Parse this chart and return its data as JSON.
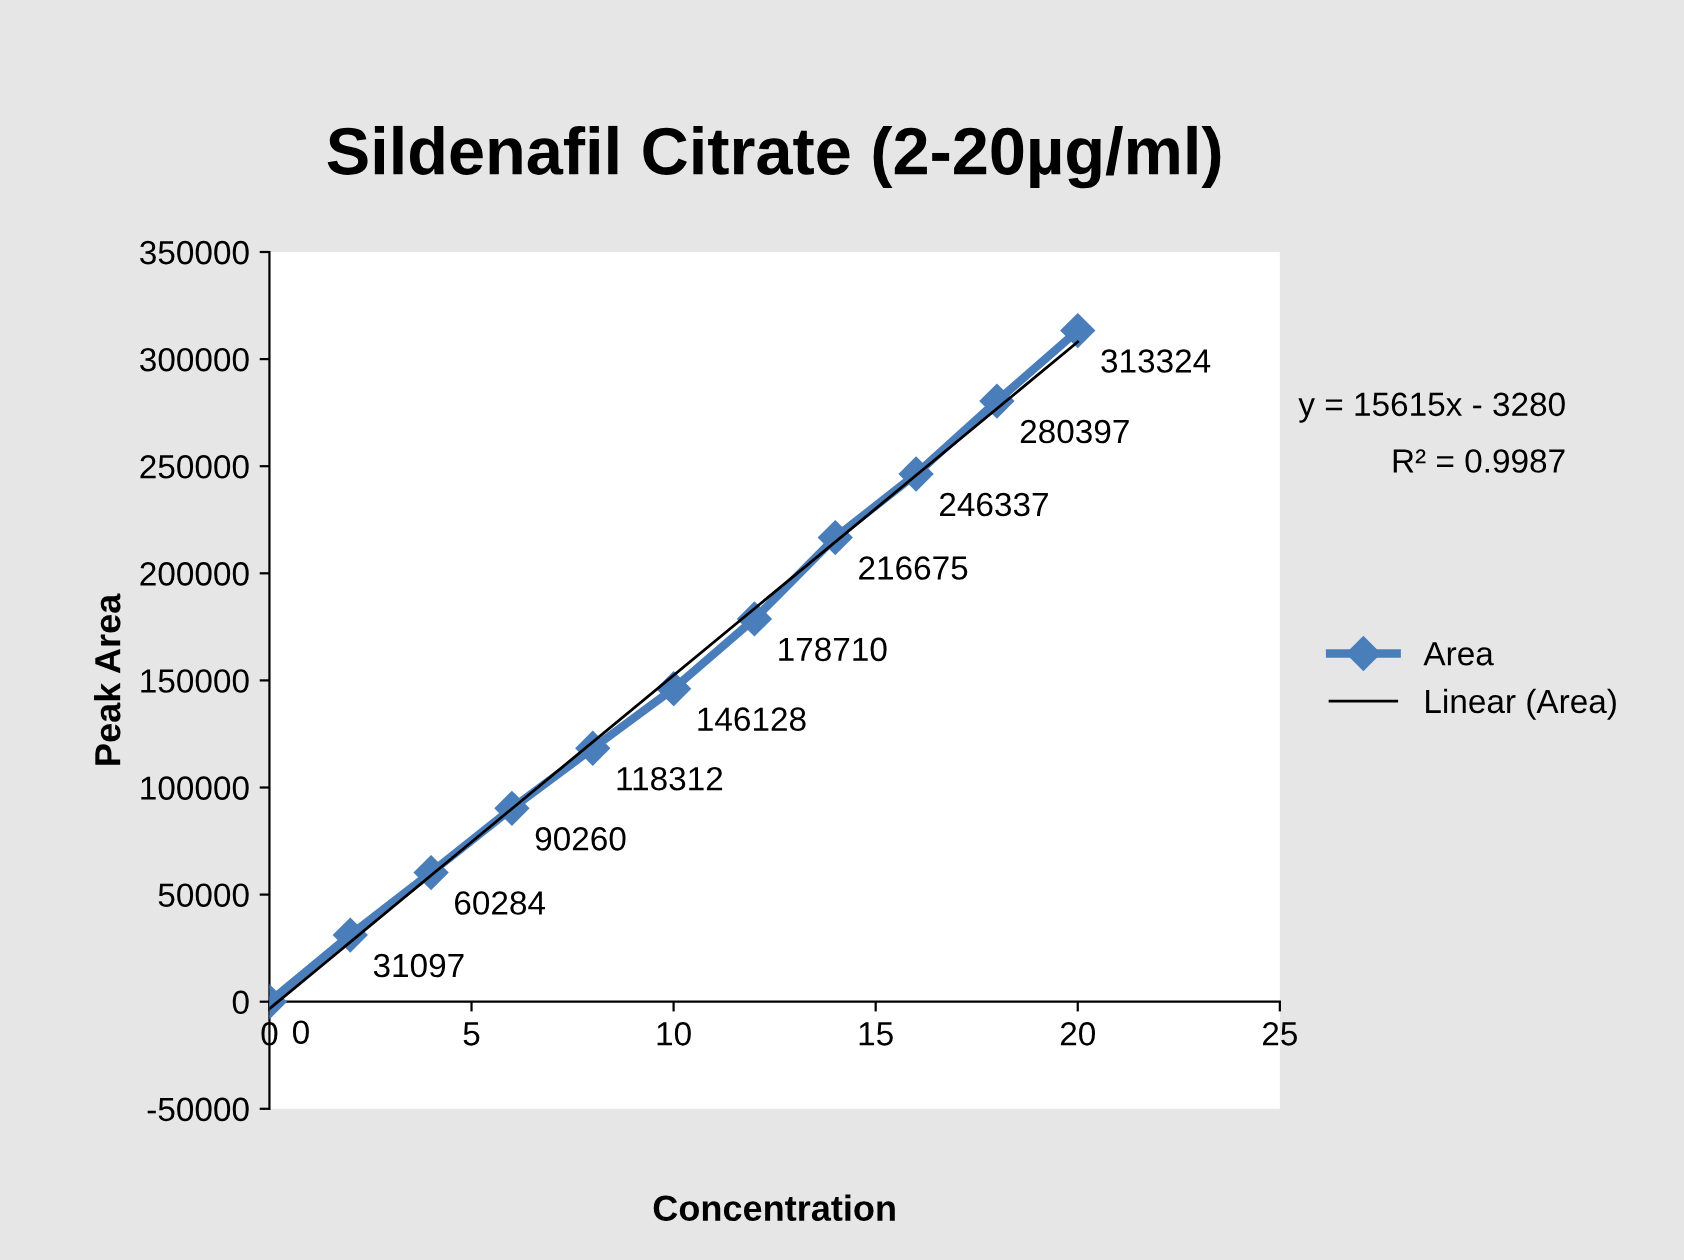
{
  "chart_data": {
    "type": "line",
    "title": "Sildenafil Citrate (2-20µg/ml)",
    "xlabel": "Concentration",
    "ylabel": "Peak Area",
    "x": [
      0,
      2,
      4,
      6,
      8,
      10,
      12,
      14,
      16,
      18,
      20
    ],
    "series": [
      {
        "name": "Area",
        "color": "#4a7ebb",
        "values": [
          0,
          31097,
          60284,
          90260,
          118312,
          146128,
          178710,
          216675,
          246337,
          280397,
          313324
        ],
        "marker": "diamond",
        "data_labels": true
      },
      {
        "name": "Linear (Area)",
        "color": "#000000",
        "x": [
          0,
          20
        ],
        "values": [
          -3280,
          308020
        ],
        "marker": "none"
      }
    ],
    "annotations": [
      "y = 15615x - 3280",
      "R² = 0.9987"
    ],
    "xlim": [
      0,
      25
    ],
    "xticks": [
      0,
      5,
      10,
      15,
      20,
      25
    ],
    "ylim": [
      -50000,
      350000
    ],
    "yticks": [
      -50000,
      0,
      50000,
      100000,
      150000,
      200000,
      250000,
      300000,
      350000
    ],
    "grid": false,
    "legend": "right"
  }
}
